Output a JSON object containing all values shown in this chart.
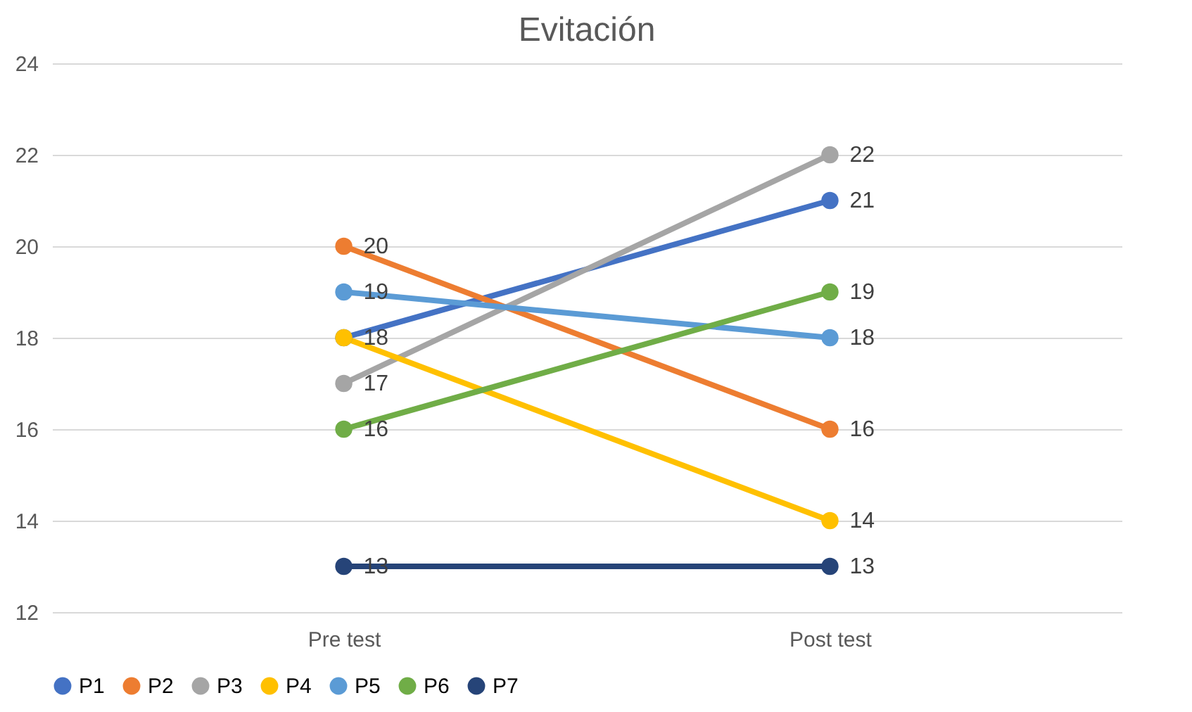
{
  "chart_data": {
    "type": "line",
    "title": "Evitación",
    "categories": [
      "Pre test",
      "Post test"
    ],
    "series": [
      {
        "name": "P1",
        "color": "#4472c4",
        "values": [
          18,
          21
        ]
      },
      {
        "name": "P2",
        "color": "#ed7d31",
        "values": [
          20,
          16
        ]
      },
      {
        "name": "P3",
        "color": "#a5a5a5",
        "values": [
          17,
          22
        ]
      },
      {
        "name": "P4",
        "color": "#ffc000",
        "values": [
          18,
          14
        ],
        "value_labels": [
          null,
          "14"
        ]
      },
      {
        "name": "P5",
        "color": "#5b9bd5",
        "values": [
          19,
          18
        ]
      },
      {
        "name": "P6",
        "color": "#70ad47",
        "values": [
          16,
          19
        ]
      },
      {
        "name": "P7",
        "color": "#264478",
        "values": [
          13,
          13
        ]
      }
    ],
    "ylim": [
      12,
      24
    ],
    "yticks": [
      12,
      14,
      16,
      18,
      20,
      22,
      24
    ],
    "grid": "y",
    "legend": "bottom",
    "marker": "circle",
    "line_style": "solid",
    "data_labels": true
  }
}
